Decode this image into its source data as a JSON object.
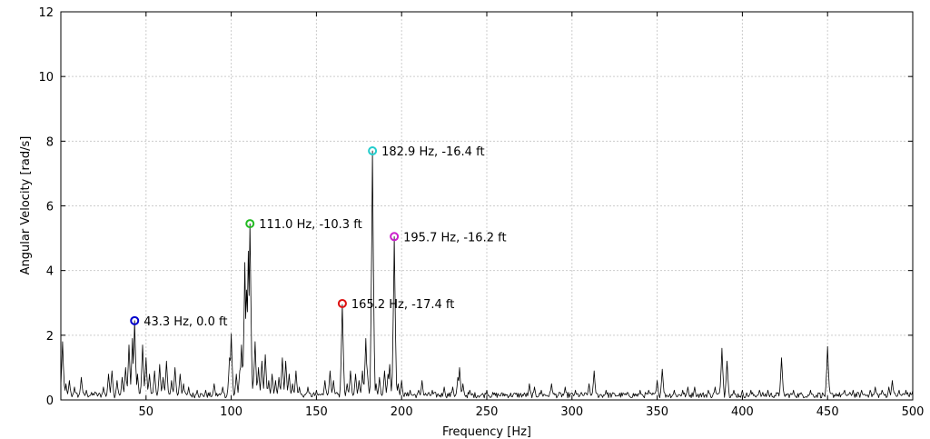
{
  "chart_data": {
    "type": "line",
    "xlabel": "Frequency [Hz]",
    "ylabel": "Angular Velocity [rad/s]",
    "xlim": [
      0,
      500
    ],
    "ylim": [
      0,
      12
    ],
    "xticks": [
      50,
      100,
      150,
      200,
      250,
      300,
      350,
      400,
      450,
      500
    ],
    "yticks": [
      0,
      2,
      4,
      6,
      8,
      10,
      12
    ],
    "grid": true,
    "line_color": "#000000",
    "spectrum": {
      "baseline": 0.2,
      "peaks": [
        [
          1,
          1.8
        ],
        [
          3,
          0.5
        ],
        [
          5,
          0.6
        ],
        [
          8,
          0.4
        ],
        [
          12,
          0.7
        ],
        [
          15,
          0.3
        ],
        [
          20,
          0.25
        ],
        [
          25,
          0.4
        ],
        [
          28,
          0.8
        ],
        [
          30,
          0.9
        ],
        [
          33,
          0.6
        ],
        [
          36,
          0.7
        ],
        [
          38,
          1.0
        ],
        [
          40,
          1.7
        ],
        [
          42,
          1.9
        ],
        [
          43.3,
          2.45
        ],
        [
          45,
          0.8
        ],
        [
          48,
          1.7
        ],
        [
          50,
          1.3
        ],
        [
          52,
          0.8
        ],
        [
          55,
          0.9
        ],
        [
          58,
          1.1
        ],
        [
          60,
          0.7
        ],
        [
          62,
          1.2
        ],
        [
          65,
          0.6
        ],
        [
          67,
          1.0
        ],
        [
          70,
          0.8
        ],
        [
          72,
          0.5
        ],
        [
          75,
          0.4
        ],
        [
          80,
          0.3
        ],
        [
          85,
          0.3
        ],
        [
          90,
          0.5
        ],
        [
          95,
          0.4
        ],
        [
          99,
          1.3
        ],
        [
          100,
          2.05
        ],
        [
          103,
          0.8
        ],
        [
          105,
          0.9
        ],
        [
          106,
          1.7
        ],
        [
          108,
          4.25
        ],
        [
          109,
          3.4
        ],
        [
          110,
          4.6
        ],
        [
          111,
          5.45
        ],
        [
          113,
          0.6
        ],
        [
          114,
          1.8
        ],
        [
          116,
          1.0
        ],
        [
          118,
          1.2
        ],
        [
          120,
          1.4
        ],
        [
          122,
          0.6
        ],
        [
          124,
          0.8
        ],
        [
          126,
          0.6
        ],
        [
          128,
          0.7
        ],
        [
          130,
          1.3
        ],
        [
          132,
          1.2
        ],
        [
          134,
          0.8
        ],
        [
          136,
          0.5
        ],
        [
          138,
          0.9
        ],
        [
          140,
          0.4
        ],
        [
          145,
          0.4
        ],
        [
          150,
          0.3
        ],
        [
          155,
          0.6
        ],
        [
          158,
          0.9
        ],
        [
          160,
          0.6
        ],
        [
          165.2,
          2.95
        ],
        [
          168,
          0.5
        ],
        [
          170,
          0.9
        ],
        [
          173,
          0.8
        ],
        [
          175,
          0.6
        ],
        [
          177,
          0.9
        ],
        [
          179,
          1.9
        ],
        [
          180,
          0.8
        ],
        [
          182.9,
          7.7
        ],
        [
          185,
          0.5
        ],
        [
          187,
          0.7
        ],
        [
          190,
          0.9
        ],
        [
          192,
          0.8
        ],
        [
          193,
          1.1
        ],
        [
          195.7,
          5.05
        ],
        [
          198,
          0.5
        ],
        [
          200,
          0.6
        ],
        [
          205,
          0.3
        ],
        [
          210,
          0.3
        ],
        [
          212,
          0.6
        ],
        [
          218,
          0.3
        ],
        [
          225,
          0.4
        ],
        [
          230,
          0.4
        ],
        [
          233,
          0.7
        ],
        [
          234,
          1.0
        ],
        [
          236,
          0.5
        ],
        [
          240,
          0.3
        ],
        [
          250,
          0.3
        ],
        [
          260,
          0.2
        ],
        [
          275,
          0.5
        ],
        [
          278,
          0.4
        ],
        [
          282,
          0.3
        ],
        [
          288,
          0.5
        ],
        [
          296,
          0.4
        ],
        [
          302,
          0.3
        ],
        [
          310,
          0.5
        ],
        [
          313,
          0.9
        ],
        [
          320,
          0.3
        ],
        [
          330,
          0.2
        ],
        [
          340,
          0.3
        ],
        [
          345,
          0.3
        ],
        [
          350,
          0.6
        ],
        [
          353,
          0.95
        ],
        [
          360,
          0.3
        ],
        [
          365,
          0.3
        ],
        [
          368,
          0.4
        ],
        [
          372,
          0.4
        ],
        [
          380,
          0.3
        ],
        [
          384,
          0.4
        ],
        [
          388,
          1.6
        ],
        [
          391,
          1.2
        ],
        [
          395,
          0.3
        ],
        [
          400,
          0.3
        ],
        [
          405,
          0.3
        ],
        [
          410,
          0.3
        ],
        [
          415,
          0.3
        ],
        [
          423,
          1.3
        ],
        [
          430,
          0.3
        ],
        [
          440,
          0.3
        ],
        [
          445,
          0.2
        ],
        [
          450,
          1.65
        ],
        [
          455,
          0.2
        ],
        [
          460,
          0.3
        ],
        [
          465,
          0.3
        ],
        [
          470,
          0.3
        ],
        [
          475,
          0.3
        ],
        [
          478,
          0.4
        ],
        [
          482,
          0.3
        ],
        [
          486,
          0.4
        ],
        [
          488,
          0.6
        ],
        [
          492,
          0.3
        ],
        [
          496,
          0.3
        ],
        [
          500,
          0.3
        ]
      ]
    },
    "annotations": [
      {
        "x": 43.3,
        "y": 2.45,
        "label": "43.3 Hz, 0.0 ft",
        "color": "#0000cc"
      },
      {
        "x": 111.0,
        "y": 5.45,
        "label": "111.0 Hz, -10.3 ft",
        "color": "#22bb22"
      },
      {
        "x": 165.2,
        "y": 2.98,
        "label": "165.2 Hz, -17.4 ft",
        "color": "#dd1111"
      },
      {
        "x": 182.9,
        "y": 7.7,
        "label": "182.9 Hz, -16.4 ft",
        "color": "#22cccc"
      },
      {
        "x": 195.7,
        "y": 5.05,
        "label": "195.7 Hz, -16.2 ft",
        "color": "#cc22cc"
      }
    ]
  }
}
